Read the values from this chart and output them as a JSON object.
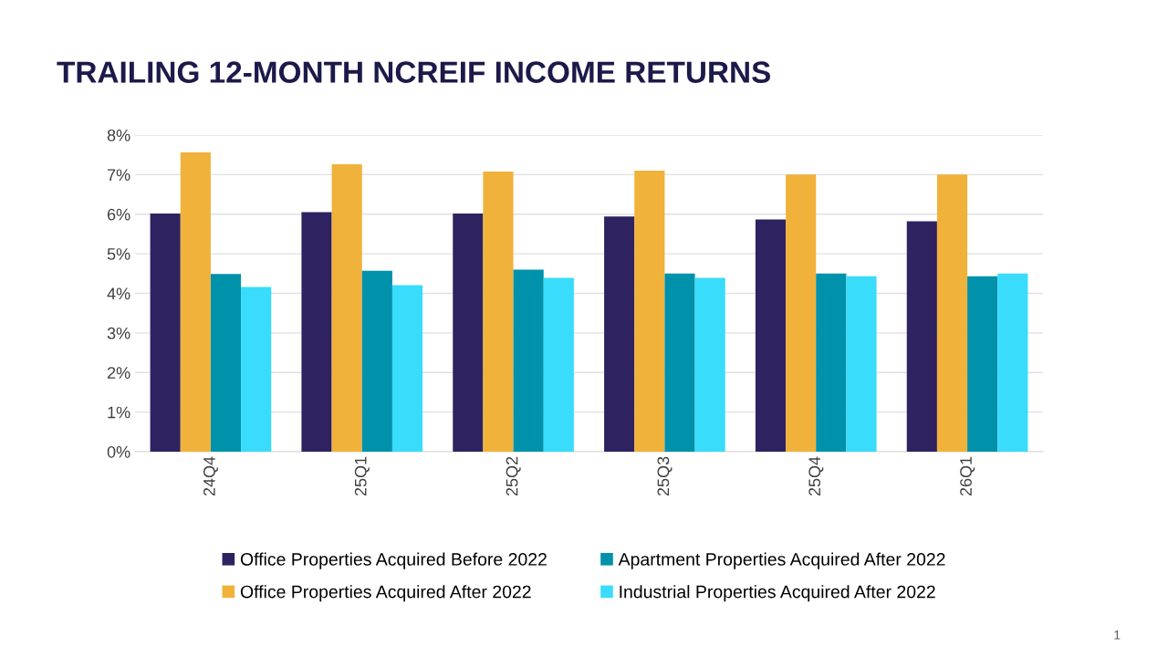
{
  "chart_data": {
    "type": "bar",
    "title": "TRAILING 12-MONTH NCREIF INCOME RETURNS",
    "categories": [
      "24Q4",
      "25Q1",
      "25Q2",
      "25Q3",
      "25Q4",
      "26Q1"
    ],
    "series": [
      {
        "name": "Office Properties Acquired Before 2022",
        "color": "#2e2260",
        "values": [
          6.02,
          6.05,
          6.02,
          5.94,
          5.87,
          5.82
        ]
      },
      {
        "name": "Office Properties Acquired After 2022",
        "color": "#f0b23a",
        "values": [
          7.56,
          7.26,
          7.08,
          7.1,
          7.0,
          7.0
        ]
      },
      {
        "name": "Apartment Properties Acquired After 2022",
        "color": "#0091ab",
        "values": [
          4.49,
          4.57,
          4.6,
          4.5,
          4.5,
          4.43
        ]
      },
      {
        "name": "Industrial Properties Acquired After 2022",
        "color": "#39dcfa",
        "values": [
          4.16,
          4.21,
          4.39,
          4.39,
          4.43,
          4.5
        ]
      }
    ],
    "ylim": [
      0,
      8
    ],
    "yticks": [
      {
        "value": 0,
        "label": "0%"
      },
      {
        "value": 1,
        "label": "1%"
      },
      {
        "value": 2,
        "label": "2%"
      },
      {
        "value": 3,
        "label": "3%"
      },
      {
        "value": 4,
        "label": "4%"
      },
      {
        "value": 5,
        "label": "5%"
      },
      {
        "value": 6,
        "label": "6%"
      },
      {
        "value": 7,
        "label": "7%"
      },
      {
        "value": 8,
        "label": "8%"
      }
    ],
    "grid": "y",
    "legend": "bottom",
    "annotations": [
      "1"
    ]
  }
}
